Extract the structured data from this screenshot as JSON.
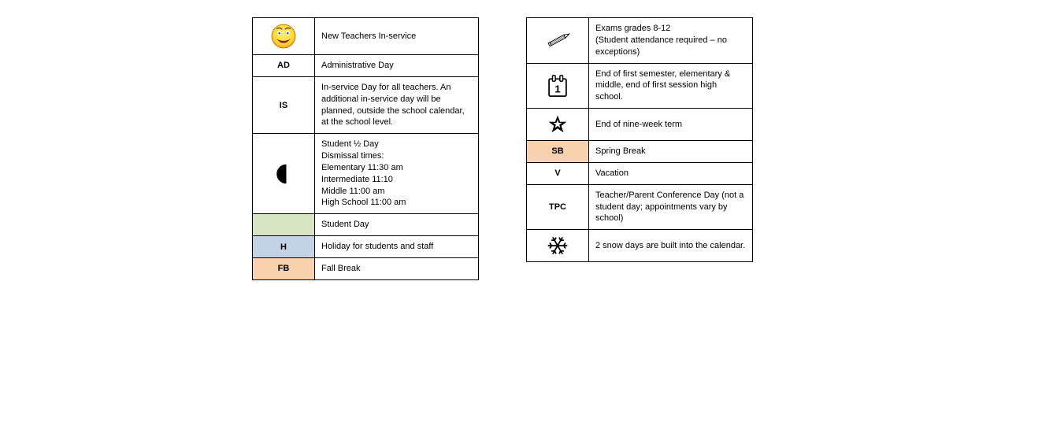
{
  "colors": {
    "border": "#000000",
    "bg_default": "#ffffff",
    "bg_green": "#d6e4c1",
    "bg_blue": "#c3d2e5",
    "bg_orange": "#f7d2ad",
    "text": "#000000"
  },
  "left_table": {
    "rows": [
      {
        "key_type": "icon",
        "icon": "smiley",
        "key_bg": "#ffffff",
        "desc": "New Teachers In-service"
      },
      {
        "key_type": "text",
        "key": "AD",
        "key_bg": "#ffffff",
        "desc": "Administrative Day"
      },
      {
        "key_type": "text",
        "key": "IS",
        "key_bg": "#ffffff",
        "desc": "In-service Day for all teachers.  An additional in-service day will be planned, outside the school calendar, at the school level."
      },
      {
        "key_type": "icon",
        "icon": "half-moon",
        "key_bg": "#ffffff",
        "desc": "Student ½ Day\nDismissal times:\nElementary 11:30 am\nIntermediate 11:10\nMiddle 11:00 am\nHigh School 11:00 am"
      },
      {
        "key_type": "blank",
        "key": "",
        "key_bg": "#d6e4c1",
        "desc": "Student Day"
      },
      {
        "key_type": "text",
        "key": "H",
        "key_bg": "#c3d2e5",
        "desc": "Holiday for students and staff"
      },
      {
        "key_type": "text",
        "key": "FB",
        "key_bg": "#f7d2ad",
        "desc": "Fall Break"
      }
    ]
  },
  "right_table": {
    "rows": [
      {
        "key_type": "icon",
        "icon": "pencil",
        "key_bg": "#ffffff",
        "desc": "Exams grades 8-12\n(Student attendance required – no exceptions)"
      },
      {
        "key_type": "icon",
        "icon": "calendar-1",
        "key_bg": "#ffffff",
        "desc": "End of first semester, elementary & middle, end of first session high school."
      },
      {
        "key_type": "icon",
        "icon": "star",
        "key_bg": "#ffffff",
        "desc": "End of nine-week term"
      },
      {
        "key_type": "text",
        "key": "SB",
        "key_bg": "#f7d2ad",
        "desc": "Spring Break"
      },
      {
        "key_type": "text",
        "key": "V",
        "key_bg": "#ffffff",
        "desc": "Vacation"
      },
      {
        "key_type": "text",
        "key": "TPC",
        "key_bg": "#ffffff",
        "desc": "Teacher/Parent Conference Day (not a student day; appointments vary by school)"
      },
      {
        "key_type": "icon",
        "icon": "snowflake",
        "key_bg": "#ffffff",
        "desc": "2 snow days are built into the calendar."
      }
    ]
  }
}
